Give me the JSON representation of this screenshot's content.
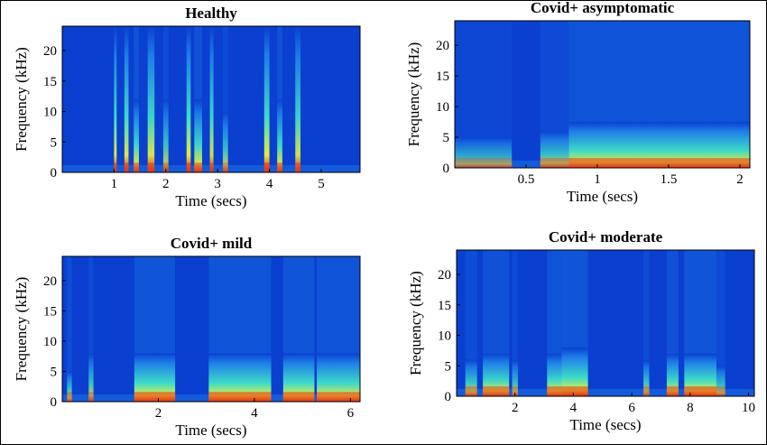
{
  "chart_data": [
    {
      "type": "heatmap",
      "title": "Healthy",
      "xlabel": "Time (secs)",
      "ylabel": "Frequency (kHz)",
      "xlim": [
        0,
        5.75
      ],
      "ylim": [
        0,
        24
      ],
      "xticks": [
        1,
        2,
        3,
        4,
        5
      ],
      "yticks": [
        0,
        5,
        10,
        15,
        20
      ],
      "events": [
        {
          "start": 1.0,
          "end": 1.05,
          "level": 0.95,
          "extent": 24
        },
        {
          "start": 1.2,
          "end": 1.28,
          "level": 0.9,
          "extent": 24
        },
        {
          "start": 1.38,
          "end": 1.48,
          "level": 0.85,
          "extent": 12
        },
        {
          "start": 1.65,
          "end": 1.78,
          "level": 0.85,
          "extent": 24
        },
        {
          "start": 1.95,
          "end": 2.05,
          "level": 0.6,
          "extent": 12
        },
        {
          "start": 2.4,
          "end": 2.48,
          "level": 0.95,
          "extent": 24
        },
        {
          "start": 2.55,
          "end": 2.7,
          "level": 0.85,
          "extent": 12
        },
        {
          "start": 2.85,
          "end": 2.92,
          "level": 0.8,
          "extent": 24
        },
        {
          "start": 3.1,
          "end": 3.2,
          "level": 0.6,
          "extent": 10
        },
        {
          "start": 3.9,
          "end": 4.0,
          "level": 0.95,
          "extent": 24
        },
        {
          "start": 4.15,
          "end": 4.25,
          "level": 0.85,
          "extent": 12
        },
        {
          "start": 4.5,
          "end": 4.6,
          "level": 0.8,
          "extent": 24
        }
      ]
    },
    {
      "type": "heatmap",
      "title": "Covid+ asymptomatic",
      "xlabel": "Time (secs)",
      "ylabel": "Frequency (kHz)",
      "xlim": [
        0,
        2.07
      ],
      "ylim": [
        0,
        24
      ],
      "xticks": [
        0.5,
        1,
        1.5,
        2
      ],
      "yticks": [
        0,
        5,
        10,
        15,
        20
      ],
      "events": [
        {
          "start": 0.0,
          "end": 0.4,
          "level": 0.35,
          "extent": 5
        },
        {
          "start": 0.6,
          "end": 0.8,
          "level": 0.55,
          "extent": 6
        },
        {
          "start": 0.8,
          "end": 2.07,
          "level": 0.9,
          "extent": 7.5
        }
      ]
    },
    {
      "type": "heatmap",
      "title": "Covid+ mild",
      "xlabel": "Time (secs)",
      "ylabel": "Frequency (kHz)",
      "xlim": [
        0,
        6.2
      ],
      "ylim": [
        0,
        24
      ],
      "xticks": [
        2,
        4,
        6
      ],
      "yticks": [
        0,
        5,
        10,
        15,
        20
      ],
      "events": [
        {
          "start": 0.1,
          "end": 0.2,
          "level": 0.7,
          "extent": 5
        },
        {
          "start": 0.55,
          "end": 0.65,
          "level": 0.6,
          "extent": 8
        },
        {
          "start": 1.5,
          "end": 2.35,
          "level": 0.95,
          "extent": 8
        },
        {
          "start": 3.05,
          "end": 4.35,
          "level": 0.95,
          "extent": 8
        },
        {
          "start": 4.6,
          "end": 5.25,
          "level": 0.95,
          "extent": 8
        },
        {
          "start": 5.3,
          "end": 6.2,
          "level": 0.9,
          "extent": 8
        }
      ]
    },
    {
      "type": "heatmap",
      "title": "Covid+ moderate",
      "xlabel": "Time (secs)",
      "ylabel": "Frequency (kHz)",
      "xlim": [
        0,
        10.2
      ],
      "ylim": [
        0,
        24
      ],
      "xticks": [
        2,
        4,
        6,
        8,
        10
      ],
      "yticks": [
        0,
        5,
        10,
        15,
        20
      ],
      "events": [
        {
          "start": 0.3,
          "end": 0.7,
          "level": 0.65,
          "extent": 6
        },
        {
          "start": 0.9,
          "end": 1.8,
          "level": 0.85,
          "extent": 7
        },
        {
          "start": 1.9,
          "end": 2.1,
          "level": 0.5,
          "extent": 6
        },
        {
          "start": 3.1,
          "end": 3.6,
          "level": 0.9,
          "extent": 7
        },
        {
          "start": 3.6,
          "end": 4.5,
          "level": 0.95,
          "extent": 8
        },
        {
          "start": 6.4,
          "end": 6.6,
          "level": 0.6,
          "extent": 6
        },
        {
          "start": 7.2,
          "end": 7.6,
          "level": 0.85,
          "extent": 7
        },
        {
          "start": 7.8,
          "end": 8.9,
          "level": 0.95,
          "extent": 7
        },
        {
          "start": 8.9,
          "end": 9.2,
          "level": 0.55,
          "extent": 5
        }
      ]
    }
  ],
  "colors": {
    "background": "#0a3fd0",
    "low": "#1e7fe8",
    "mid": "#3fe0c8",
    "high": "#e8f040",
    "peak": "#e83010"
  }
}
